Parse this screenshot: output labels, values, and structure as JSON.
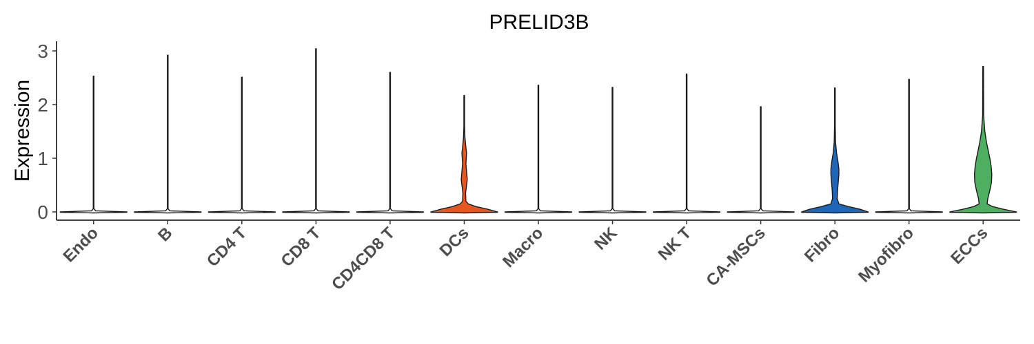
{
  "chart_data": {
    "type": "violin",
    "title": "PRELID3B",
    "xlabel": "",
    "ylabel": "Expression",
    "ylim": [
      -0.15,
      3.2
    ],
    "yticks": [
      0,
      1,
      2,
      3
    ],
    "grid": false,
    "legend": "none",
    "categories": [
      "Endo",
      "B",
      "CD4 T",
      "CD8 T",
      "CD4CD8 T",
      "DCs",
      "Macro",
      "NK",
      "NK T",
      "CA-MSCs",
      "Fibro",
      "Myofibro",
      "ECCs"
    ],
    "series": [
      {
        "category": "Endo",
        "max": 2.53,
        "color": "#ffffff",
        "profile": [
          [
            0,
            1.0
          ],
          [
            0.02,
            0.06
          ],
          [
            0.06,
            0.008
          ],
          [
            0.5,
            0.003
          ],
          [
            2.53,
            0.002
          ]
        ]
      },
      {
        "category": "B",
        "max": 2.92,
        "color": "#ffffff",
        "profile": [
          [
            0,
            1.0
          ],
          [
            0.02,
            0.06
          ],
          [
            0.06,
            0.008
          ],
          [
            0.5,
            0.003
          ],
          [
            2.92,
            0.002
          ]
        ]
      },
      {
        "category": "CD4 T",
        "max": 2.51,
        "color": "#ffffff",
        "profile": [
          [
            0,
            1.0
          ],
          [
            0.02,
            0.06
          ],
          [
            0.06,
            0.008
          ],
          [
            0.5,
            0.003
          ],
          [
            2.51,
            0.002
          ]
        ]
      },
      {
        "category": "CD8 T",
        "max": 3.04,
        "color": "#ffffff",
        "profile": [
          [
            0,
            1.0
          ],
          [
            0.02,
            0.06
          ],
          [
            0.06,
            0.008
          ],
          [
            0.5,
            0.003
          ],
          [
            3.04,
            0.002
          ]
        ]
      },
      {
        "category": "CD4CD8 T",
        "max": 2.6,
        "color": "#ffffff",
        "profile": [
          [
            0,
            1.0
          ],
          [
            0.02,
            0.06
          ],
          [
            0.06,
            0.008
          ],
          [
            0.5,
            0.003
          ],
          [
            2.6,
            0.002
          ]
        ]
      },
      {
        "category": "DCs",
        "max": 2.17,
        "color": "#e6571f",
        "profile": [
          [
            0,
            1.0
          ],
          [
            0.05,
            0.7
          ],
          [
            0.1,
            0.35
          ],
          [
            0.15,
            0.12
          ],
          [
            0.2,
            0.05
          ],
          [
            0.35,
            0.04
          ],
          [
            0.5,
            0.07
          ],
          [
            0.6,
            0.09
          ],
          [
            0.75,
            0.07
          ],
          [
            0.9,
            0.05
          ],
          [
            1.1,
            0.07
          ],
          [
            1.2,
            0.05
          ],
          [
            1.4,
            0.02
          ],
          [
            1.6,
            0.008
          ],
          [
            2.17,
            0.003
          ]
        ]
      },
      {
        "category": "Macro",
        "max": 2.36,
        "color": "#ffffff",
        "profile": [
          [
            0,
            1.0
          ],
          [
            0.02,
            0.06
          ],
          [
            0.06,
            0.008
          ],
          [
            0.5,
            0.003
          ],
          [
            2.36,
            0.002
          ]
        ]
      },
      {
        "category": "NK",
        "max": 2.32,
        "color": "#ffffff",
        "profile": [
          [
            0,
            1.0
          ],
          [
            0.02,
            0.06
          ],
          [
            0.06,
            0.008
          ],
          [
            0.5,
            0.003
          ],
          [
            2.32,
            0.002
          ]
        ]
      },
      {
        "category": "NK T",
        "max": 2.57,
        "color": "#ffffff",
        "profile": [
          [
            0,
            1.0
          ],
          [
            0.02,
            0.06
          ],
          [
            0.06,
            0.008
          ],
          [
            0.5,
            0.003
          ],
          [
            2.57,
            0.002
          ]
        ]
      },
      {
        "category": "CA-MSCs",
        "max": 1.96,
        "color": "#ffffff",
        "profile": [
          [
            0,
            1.0
          ],
          [
            0.02,
            0.06
          ],
          [
            0.06,
            0.008
          ],
          [
            0.5,
            0.003
          ],
          [
            1.96,
            0.002
          ]
        ]
      },
      {
        "category": "Fibro",
        "max": 2.31,
        "color": "#1d66b8",
        "profile": [
          [
            0,
            1.0
          ],
          [
            0.05,
            0.75
          ],
          [
            0.1,
            0.4
          ],
          [
            0.15,
            0.12
          ],
          [
            0.25,
            0.07
          ],
          [
            0.4,
            0.08
          ],
          [
            0.55,
            0.1
          ],
          [
            0.7,
            0.12
          ],
          [
            0.8,
            0.12
          ],
          [
            0.95,
            0.09
          ],
          [
            1.1,
            0.05
          ],
          [
            1.3,
            0.02
          ],
          [
            1.6,
            0.008
          ],
          [
            2.31,
            0.003
          ]
        ]
      },
      {
        "category": "Myofibro",
        "max": 2.47,
        "color": "#ffffff",
        "profile": [
          [
            0,
            1.0
          ],
          [
            0.02,
            0.06
          ],
          [
            0.06,
            0.008
          ],
          [
            0.5,
            0.003
          ],
          [
            2.47,
            0.002
          ]
        ]
      },
      {
        "category": "ECCs",
        "max": 2.71,
        "color": "#4daf5f",
        "profile": [
          [
            0,
            1.0
          ],
          [
            0.05,
            0.6
          ],
          [
            0.1,
            0.28
          ],
          [
            0.15,
            0.12
          ],
          [
            0.25,
            0.14
          ],
          [
            0.4,
            0.2
          ],
          [
            0.55,
            0.25
          ],
          [
            0.7,
            0.26
          ],
          [
            0.85,
            0.24
          ],
          [
            1.0,
            0.2
          ],
          [
            1.15,
            0.15
          ],
          [
            1.3,
            0.1
          ],
          [
            1.5,
            0.05
          ],
          [
            1.8,
            0.015
          ],
          [
            2.71,
            0.003
          ]
        ]
      }
    ]
  }
}
